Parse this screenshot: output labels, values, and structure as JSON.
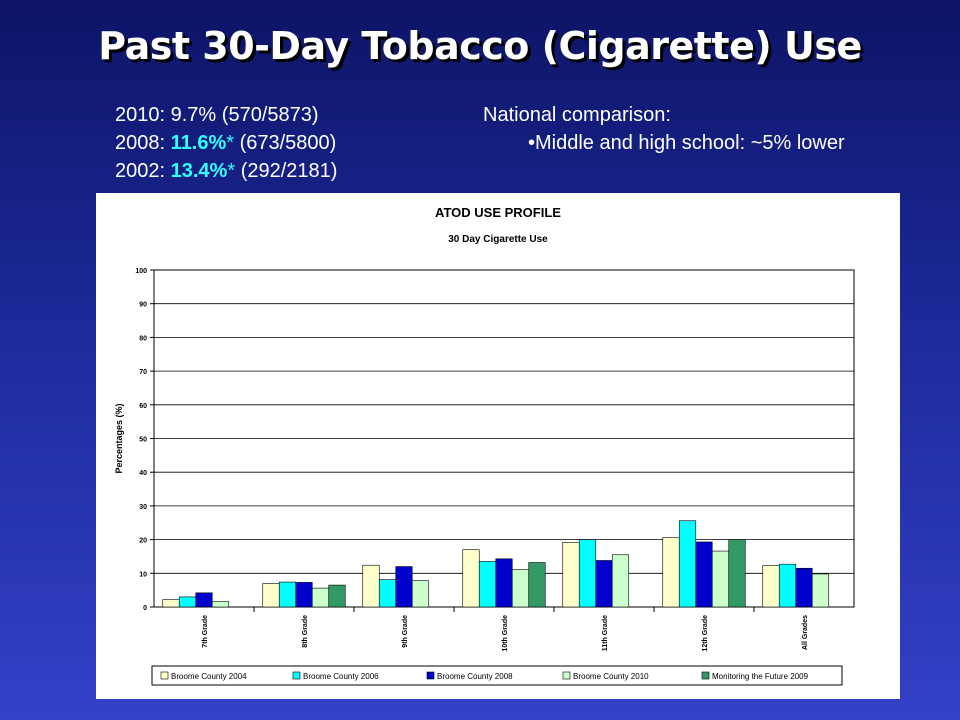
{
  "slide": {
    "title": "Past 30-Day Tobacco (Cigarette) Use",
    "stats": [
      {
        "label": "2010:",
        "pct": "9.7%",
        "star": "",
        "count": "(570/5873)",
        "highlight": false
      },
      {
        "label": "2008:",
        "pct": "11.6%",
        "star": "*",
        "count": "(673/5800)",
        "highlight": true
      },
      {
        "label": "2002:",
        "pct": "13.4%",
        "star": "*",
        "count": "(292/2181)",
        "highlight": true
      }
    ],
    "national_heading": "National comparison:",
    "national_bullet": "•Middle and high school: ~5% lower"
  },
  "chart_data": {
    "type": "bar",
    "title": "ATOD USE PROFILE",
    "subtitle": "30 Day Cigarette Use",
    "xlabel": "",
    "ylabel": "Percentages (%)",
    "ylim": [
      0,
      100
    ],
    "yticks": [
      0,
      10,
      20,
      30,
      40,
      50,
      60,
      70,
      80,
      90,
      100
    ],
    "grid": true,
    "legend_position": "bottom",
    "categories": [
      "7th Grade",
      "8th Grade",
      "9th Grade",
      "10th Grade",
      "11th Grade",
      "12th Grade",
      "All Grades"
    ],
    "series": [
      {
        "name": "Broome County 2004",
        "color": "#ffffcc",
        "values": [
          2.2,
          7.0,
          12.4,
          17.0,
          19.2,
          20.6,
          12.3
        ]
      },
      {
        "name": "Broome County 2006",
        "color": "#00ffff",
        "values": [
          3.0,
          7.4,
          8.1,
          13.5,
          20.0,
          25.6,
          12.7
        ]
      },
      {
        "name": "Broome County 2008",
        "color": "#0000cc",
        "values": [
          4.2,
          7.3,
          12.0,
          14.3,
          13.8,
          19.3,
          11.5
        ]
      },
      {
        "name": "Broome County 2010",
        "color": "#ccffcc",
        "values": [
          1.6,
          5.6,
          7.8,
          11.1,
          15.5,
          16.6,
          9.8
        ]
      },
      {
        "name": "Monitoring the Future 2009",
        "color": "#339966",
        "values": [
          null,
          6.5,
          null,
          13.2,
          null,
          20.0,
          null
        ]
      }
    ]
  }
}
